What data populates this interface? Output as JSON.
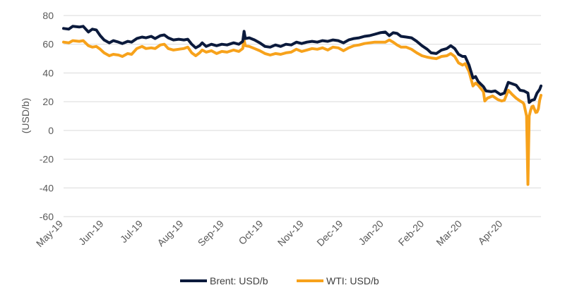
{
  "chart_data": {
    "type": "line",
    "title": "",
    "xlabel": "",
    "ylabel": "(USD/b)",
    "ylim": [
      -60,
      80
    ],
    "yticks": [
      -60,
      -40,
      -20,
      0,
      20,
      40,
      60,
      80
    ],
    "xlim": [
      "2019-05-01",
      "2020-04-30"
    ],
    "xticks": [
      {
        "date": "2019-05-01",
        "label": "May-19"
      },
      {
        "date": "2019-06-01",
        "label": "Jun-19"
      },
      {
        "date": "2019-07-01",
        "label": "Jul-19"
      },
      {
        "date": "2019-08-01",
        "label": "Aug-19"
      },
      {
        "date": "2019-09-01",
        "label": "Sep-19"
      },
      {
        "date": "2019-10-01",
        "label": "Oct-19"
      },
      {
        "date": "2019-11-01",
        "label": "Nov-19"
      },
      {
        "date": "2019-12-01",
        "label": "Dec-19"
      },
      {
        "date": "2020-01-01",
        "label": "Jan-20"
      },
      {
        "date": "2020-02-01",
        "label": "Feb-20"
      },
      {
        "date": "2020-03-01",
        "label": "Mar-20"
      },
      {
        "date": "2020-04-01",
        "label": "Apr-20"
      }
    ],
    "grid": "horizontal",
    "legend": "bottom-center",
    "series": [
      {
        "name": "Brent: USD/b",
        "color": "#0b1a3c",
        "points": [
          [
            "2019-05-01",
            71
          ],
          [
            "2019-05-05",
            70.5
          ],
          [
            "2019-05-08",
            72.5
          ],
          [
            "2019-05-13",
            72
          ],
          [
            "2019-05-16",
            72.5
          ],
          [
            "2019-05-20",
            68.5
          ],
          [
            "2019-05-23",
            70.5
          ],
          [
            "2019-05-26",
            70
          ],
          [
            "2019-05-29",
            66
          ],
          [
            "2019-06-01",
            63
          ],
          [
            "2019-06-05",
            61
          ],
          [
            "2019-06-08",
            62.5
          ],
          [
            "2019-06-12",
            61.5
          ],
          [
            "2019-06-15",
            60.5
          ],
          [
            "2019-06-19",
            62
          ],
          [
            "2019-06-22",
            61.5
          ],
          [
            "2019-06-26",
            64
          ],
          [
            "2019-06-30",
            65
          ],
          [
            "2019-07-03",
            64.5
          ],
          [
            "2019-07-07",
            65.5
          ],
          [
            "2019-07-10",
            64
          ],
          [
            "2019-07-14",
            66
          ],
          [
            "2019-07-17",
            66.5
          ],
          [
            "2019-07-20",
            64.5
          ],
          [
            "2019-07-24",
            63
          ],
          [
            "2019-07-28",
            63.5
          ],
          [
            "2019-08-01",
            63
          ],
          [
            "2019-08-04",
            63.5
          ],
          [
            "2019-08-07",
            60
          ],
          [
            "2019-08-10",
            57.5
          ],
          [
            "2019-08-13",
            59
          ],
          [
            "2019-08-15",
            61
          ],
          [
            "2019-08-18",
            58.5
          ],
          [
            "2019-08-22",
            60
          ],
          [
            "2019-08-26",
            59
          ],
          [
            "2019-08-30",
            60
          ],
          [
            "2019-09-03",
            59.5
          ],
          [
            "2019-09-08",
            61
          ],
          [
            "2019-09-12",
            60
          ],
          [
            "2019-09-15",
            62
          ],
          [
            "2019-09-16",
            69
          ],
          [
            "2019-09-17",
            64
          ],
          [
            "2019-09-20",
            64.5
          ],
          [
            "2019-09-24",
            63
          ],
          [
            "2019-09-28",
            61
          ],
          [
            "2019-10-02",
            58.5
          ],
          [
            "2019-10-06",
            58
          ],
          [
            "2019-10-10",
            59.5
          ],
          [
            "2019-10-14",
            58.5
          ],
          [
            "2019-10-18",
            60
          ],
          [
            "2019-10-22",
            59.5
          ],
          [
            "2019-10-26",
            61.5
          ],
          [
            "2019-10-30",
            60.5
          ],
          [
            "2019-11-03",
            61.5
          ],
          [
            "2019-11-07",
            62
          ],
          [
            "2019-11-11",
            61.5
          ],
          [
            "2019-11-15",
            62.5
          ],
          [
            "2019-11-19",
            62
          ],
          [
            "2019-11-23",
            63
          ],
          [
            "2019-11-27",
            62.5
          ],
          [
            "2019-12-01",
            61
          ],
          [
            "2019-12-05",
            63
          ],
          [
            "2019-12-09",
            64
          ],
          [
            "2019-12-13",
            64.5
          ],
          [
            "2019-12-17",
            65.5
          ],
          [
            "2019-12-21",
            66
          ],
          [
            "2019-12-25",
            67
          ],
          [
            "2019-12-29",
            68
          ],
          [
            "2020-01-02",
            68.5
          ],
          [
            "2020-01-05",
            66
          ],
          [
            "2020-01-08",
            68
          ],
          [
            "2020-01-11",
            67.5
          ],
          [
            "2020-01-14",
            65.5
          ],
          [
            "2020-01-18",
            65
          ],
          [
            "2020-01-22",
            64.5
          ],
          [
            "2020-01-26",
            62
          ],
          [
            "2020-01-30",
            59
          ],
          [
            "2020-02-03",
            56.5
          ],
          [
            "2020-02-06",
            54
          ],
          [
            "2020-02-10",
            53.5
          ],
          [
            "2020-02-14",
            56
          ],
          [
            "2020-02-18",
            57
          ],
          [
            "2020-02-21",
            59
          ],
          [
            "2020-02-24",
            57
          ],
          [
            "2020-02-27",
            53
          ],
          [
            "2020-03-01",
            51.5
          ],
          [
            "2020-03-03",
            51.5
          ],
          [
            "2020-03-06",
            45.5
          ],
          [
            "2020-03-09",
            36.5
          ],
          [
            "2020-03-11",
            37.5
          ],
          [
            "2020-03-13",
            34
          ],
          [
            "2020-03-17",
            30.5
          ],
          [
            "2020-03-19",
            27.5
          ],
          [
            "2020-03-23",
            27
          ],
          [
            "2020-03-26",
            27.5
          ],
          [
            "2020-03-30",
            25
          ],
          [
            "2020-04-02",
            26
          ],
          [
            "2020-04-05",
            33.5
          ],
          [
            "2020-04-08",
            32.5
          ],
          [
            "2020-04-11",
            31.5
          ],
          [
            "2020-04-14",
            28
          ],
          [
            "2020-04-17",
            27.5
          ],
          [
            "2020-04-20",
            26
          ],
          [
            "2020-04-21",
            19.5
          ],
          [
            "2020-04-23",
            21
          ],
          [
            "2020-04-25",
            21.5
          ],
          [
            "2020-04-27",
            26
          ],
          [
            "2020-04-29",
            28.5
          ],
          [
            "2020-04-30",
            31
          ]
        ]
      },
      {
        "name": "WTI: USD/b",
        "color": "#f7a21b",
        "points": [
          [
            "2019-05-01",
            61.5
          ],
          [
            "2019-05-05",
            61
          ],
          [
            "2019-05-08",
            62.5
          ],
          [
            "2019-05-13",
            62
          ],
          [
            "2019-05-16",
            62.5
          ],
          [
            "2019-05-20",
            59
          ],
          [
            "2019-05-23",
            58
          ],
          [
            "2019-05-26",
            58.5
          ],
          [
            "2019-05-29",
            56.5
          ],
          [
            "2019-06-01",
            54
          ],
          [
            "2019-06-05",
            52
          ],
          [
            "2019-06-08",
            53
          ],
          [
            "2019-06-12",
            52.5
          ],
          [
            "2019-06-15",
            51.5
          ],
          [
            "2019-06-19",
            53.5
          ],
          [
            "2019-06-22",
            53
          ],
          [
            "2019-06-26",
            57
          ],
          [
            "2019-06-30",
            58.5
          ],
          [
            "2019-07-03",
            57
          ],
          [
            "2019-07-07",
            57.5
          ],
          [
            "2019-07-10",
            57
          ],
          [
            "2019-07-14",
            59.5
          ],
          [
            "2019-07-17",
            60
          ],
          [
            "2019-07-20",
            57
          ],
          [
            "2019-07-24",
            56
          ],
          [
            "2019-07-28",
            56.5
          ],
          [
            "2019-08-01",
            57
          ],
          [
            "2019-08-04",
            58
          ],
          [
            "2019-08-07",
            54
          ],
          [
            "2019-08-10",
            52
          ],
          [
            "2019-08-13",
            54
          ],
          [
            "2019-08-15",
            56
          ],
          [
            "2019-08-18",
            54.5
          ],
          [
            "2019-08-22",
            55.5
          ],
          [
            "2019-08-26",
            53.5
          ],
          [
            "2019-08-30",
            55
          ],
          [
            "2019-09-03",
            54.5
          ],
          [
            "2019-09-08",
            56
          ],
          [
            "2019-09-12",
            55
          ],
          [
            "2019-09-15",
            57
          ],
          [
            "2019-09-16",
            63
          ],
          [
            "2019-09-17",
            59
          ],
          [
            "2019-09-20",
            58.5
          ],
          [
            "2019-09-24",
            57
          ],
          [
            "2019-09-28",
            55.5
          ],
          [
            "2019-10-02",
            53.5
          ],
          [
            "2019-10-06",
            52.5
          ],
          [
            "2019-10-10",
            53.5
          ],
          [
            "2019-10-14",
            53
          ],
          [
            "2019-10-18",
            54
          ],
          [
            "2019-10-22",
            54.5
          ],
          [
            "2019-10-26",
            56.5
          ],
          [
            "2019-10-30",
            55
          ],
          [
            "2019-11-03",
            56
          ],
          [
            "2019-11-07",
            57
          ],
          [
            "2019-11-11",
            56.5
          ],
          [
            "2019-11-15",
            57.5
          ],
          [
            "2019-11-19",
            56
          ],
          [
            "2019-11-23",
            58
          ],
          [
            "2019-11-27",
            57.5
          ],
          [
            "2019-12-01",
            55.5
          ],
          [
            "2019-12-05",
            57.5
          ],
          [
            "2019-12-09",
            59
          ],
          [
            "2019-12-13",
            59.5
          ],
          [
            "2019-12-17",
            60.5
          ],
          [
            "2019-12-21",
            61
          ],
          [
            "2019-12-25",
            61.5
          ],
          [
            "2019-12-29",
            61.5
          ],
          [
            "2020-01-02",
            61.5
          ],
          [
            "2020-01-05",
            63
          ],
          [
            "2020-01-08",
            61.5
          ],
          [
            "2020-01-11",
            59.5
          ],
          [
            "2020-01-14",
            58
          ],
          [
            "2020-01-18",
            58
          ],
          [
            "2020-01-22",
            56.5
          ],
          [
            "2020-01-26",
            54
          ],
          [
            "2020-01-30",
            52
          ],
          [
            "2020-02-03",
            51
          ],
          [
            "2020-02-06",
            50.5
          ],
          [
            "2020-02-10",
            50
          ],
          [
            "2020-02-14",
            51.5
          ],
          [
            "2020-02-18",
            52
          ],
          [
            "2020-02-21",
            53.5
          ],
          [
            "2020-02-24",
            51.5
          ],
          [
            "2020-02-27",
            47
          ],
          [
            "2020-03-01",
            45.5
          ],
          [
            "2020-03-03",
            46.5
          ],
          [
            "2020-03-06",
            41
          ],
          [
            "2020-03-09",
            31
          ],
          [
            "2020-03-11",
            33
          ],
          [
            "2020-03-13",
            31.5
          ],
          [
            "2020-03-17",
            27
          ],
          [
            "2020-03-18",
            20.5
          ],
          [
            "2020-03-20",
            22.5
          ],
          [
            "2020-03-24",
            24
          ],
          [
            "2020-03-28",
            21.5
          ],
          [
            "2020-03-31",
            20.5
          ],
          [
            "2020-04-02",
            21
          ],
          [
            "2020-04-05",
            28
          ],
          [
            "2020-04-08",
            25
          ],
          [
            "2020-04-11",
            22.5
          ],
          [
            "2020-04-14",
            20.5
          ],
          [
            "2020-04-16",
            19.5
          ],
          [
            "2020-04-17",
            18.3
          ],
          [
            "2020-04-19",
            10
          ],
          [
            "2020-04-20",
            -37.6
          ],
          [
            "2020-04-21",
            10
          ],
          [
            "2020-04-22",
            13.8
          ],
          [
            "2020-04-23",
            16.5
          ],
          [
            "2020-04-24",
            17
          ],
          [
            "2020-04-26",
            12.5
          ],
          [
            "2020-04-27",
            12.8
          ],
          [
            "2020-04-28",
            15
          ],
          [
            "2020-04-29",
            21
          ],
          [
            "2020-04-30",
            24.5
          ]
        ]
      }
    ]
  }
}
